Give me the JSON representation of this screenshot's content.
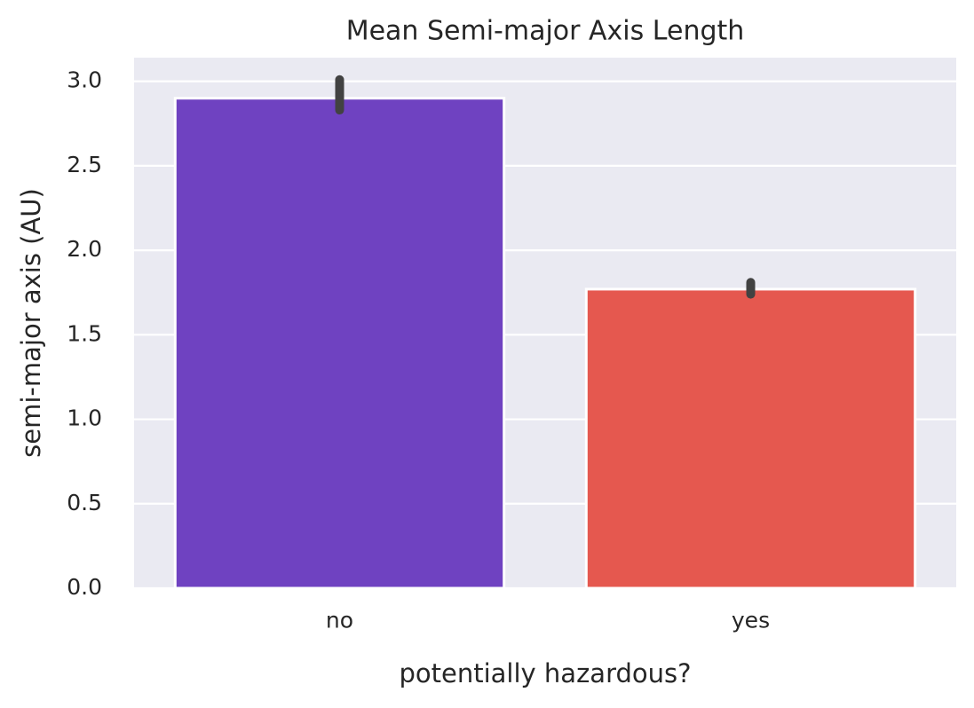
{
  "chart_data": {
    "type": "bar",
    "title": "Mean Semi-major Axis Length",
    "xlabel": "potentially hazardous?",
    "ylabel": "semi-major axis (AU)",
    "categories": [
      "no",
      "yes"
    ],
    "values": [
      2.9,
      1.77
    ],
    "error_bars": [
      {
        "low": 2.83,
        "high": 3.01
      },
      {
        "low": 1.74,
        "high": 1.81
      }
    ],
    "ylim": [
      0,
      3.14
    ],
    "yticks": [
      0.0,
      0.5,
      1.0,
      1.5,
      2.0,
      2.5,
      3.0
    ],
    "ytick_labels": [
      "0.0",
      "0.5",
      "1.0",
      "1.5",
      "2.0",
      "2.5",
      "3.0"
    ],
    "grid": true,
    "colors": {
      "bars": [
        "#6f42c1",
        "#e5584f"
      ],
      "background": "#eaeaf2",
      "grid": "#ffffff",
      "error_bar": "#424242",
      "text": "#262626"
    }
  }
}
